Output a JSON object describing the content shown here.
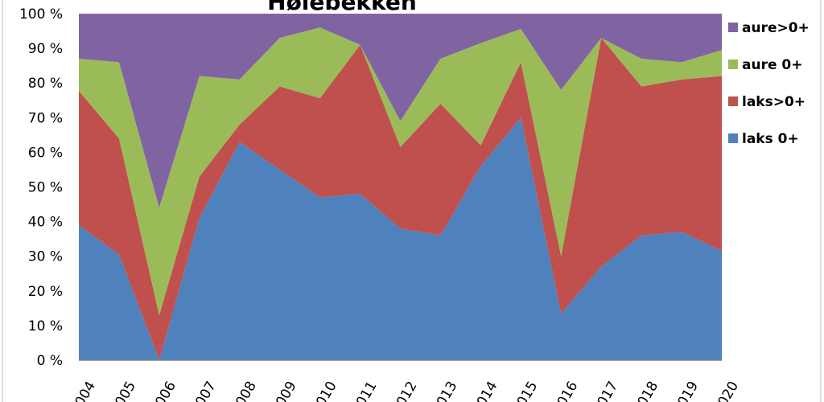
{
  "chart_data": {
    "type": "area",
    "stacked": "percent",
    "title": "Hølebekken",
    "categories": [
      "2004",
      "2005",
      "2006",
      "2007",
      "2008",
      "2009",
      "2010",
      "2011",
      "2012",
      "2013",
      "2014",
      "2015",
      "2016",
      "2017",
      "2018",
      "2019",
      "2020"
    ],
    "y_ticks": [
      "0 %",
      "10 %",
      "20 %",
      "30 %",
      "40 %",
      "50 %",
      "60 %",
      "70 %",
      "80 %",
      "90 %",
      "100 %"
    ],
    "ylim": [
      0,
      100
    ],
    "grid": false,
    "legend_position": "right",
    "series": [
      {
        "name": "laks 0+",
        "color": "#4f81bd",
        "values": [
          39,
          30.5,
          0,
          41,
          63,
          55,
          47,
          48,
          38,
          36,
          56,
          70,
          13.5,
          27,
          36,
          37,
          31.5
        ]
      },
      {
        "name": "laks>0+",
        "color": "#c0504d",
        "values": [
          38.7,
          33.5,
          13,
          12,
          5,
          24,
          28.6,
          43,
          23.5,
          38,
          6,
          16,
          16.5,
          66,
          43,
          44,
          50.5
        ]
      },
      {
        "name": "aure 0+",
        "color": "#9bbb59",
        "values": [
          9.3,
          22,
          31,
          29,
          13,
          14,
          20.4,
          0,
          7.5,
          13,
          29.5,
          9.6,
          48,
          0,
          8,
          5,
          7.5
        ]
      },
      {
        "name": "aure>0+",
        "color": "#8064a2",
        "values": [
          13,
          14,
          56,
          18,
          19,
          7,
          4,
          9,
          31,
          13,
          8.5,
          4.4,
          22,
          7,
          13,
          14,
          10.5
        ]
      }
    ]
  }
}
